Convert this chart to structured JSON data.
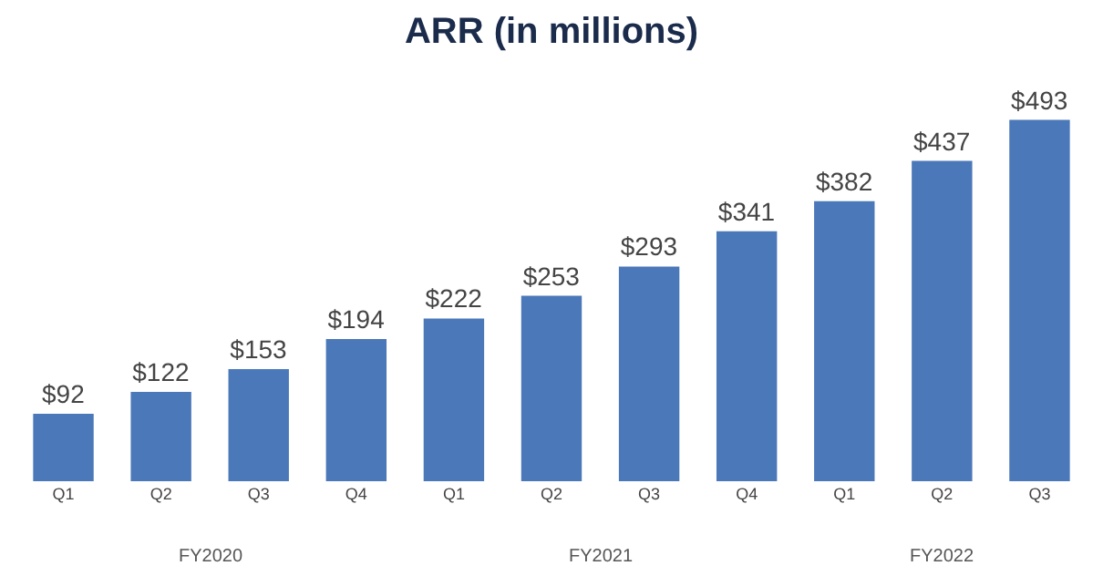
{
  "chart_data": {
    "type": "bar",
    "title": "ARR (in millions)",
    "categories": [
      "Q1",
      "Q2",
      "Q3",
      "Q4",
      "Q1",
      "Q2",
      "Q3",
      "Q4",
      "Q1",
      "Q2",
      "Q3"
    ],
    "values": [
      92,
      122,
      153,
      194,
      222,
      253,
      293,
      341,
      382,
      437,
      493
    ],
    "value_labels": [
      "$92",
      "$122",
      "$153",
      "$194",
      "$222",
      "$253",
      "$293",
      "$341",
      "$382",
      "$437",
      "$493"
    ],
    "color": "#4a78b8",
    "annotations": [
      "FY2020",
      "FY2021",
      "FY2022"
    ],
    "grid": false
  }
}
